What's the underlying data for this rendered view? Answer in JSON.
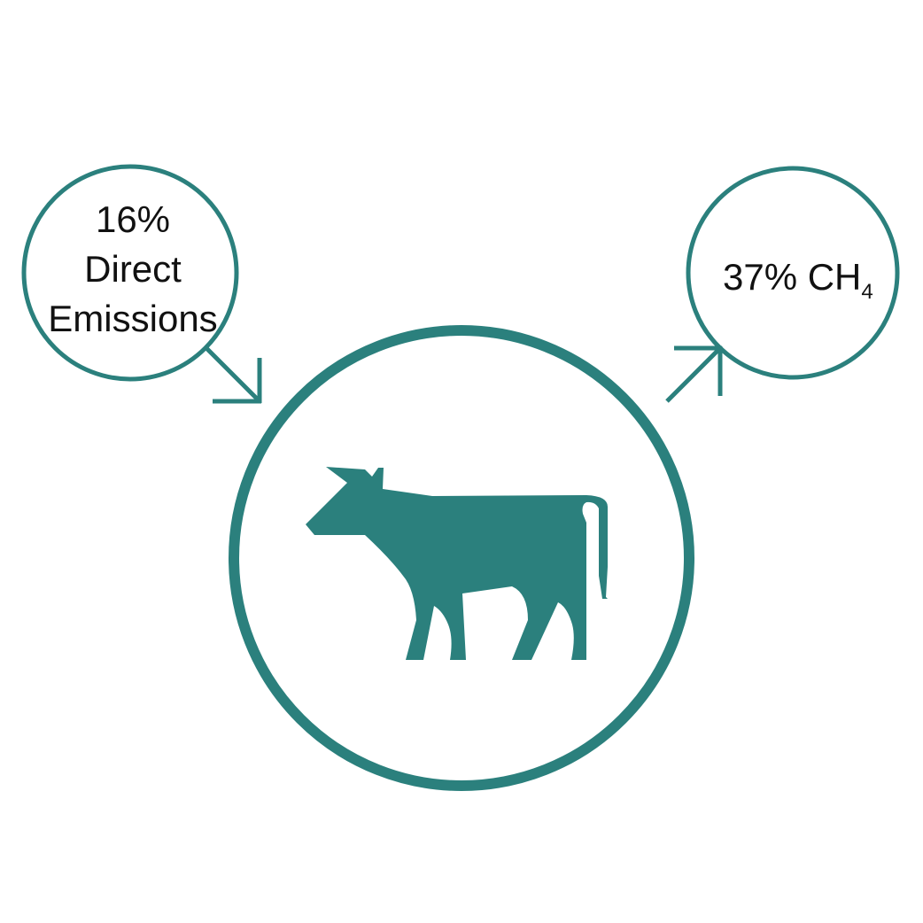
{
  "colors": {
    "accent": "#2b807d",
    "text": "#111111",
    "background": "#ffffff"
  },
  "left_bubble": {
    "line1": "16%",
    "line2": "Direct",
    "line3": "Emissions"
  },
  "right_bubble": {
    "main": "37% CH",
    "subscript": "4"
  },
  "center": {
    "icon": "cow-icon"
  }
}
